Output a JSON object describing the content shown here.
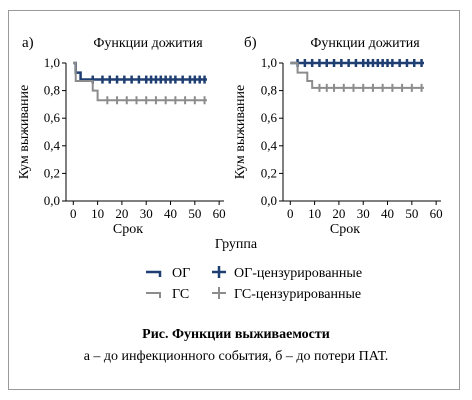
{
  "chart_data": [
    {
      "type": "line",
      "subtype": "kaplan-meier",
      "panel": "а)",
      "title": "Функции дожития",
      "xlabel": "Срок",
      "ylabel": "Кум выживание",
      "xlim": [
        -3,
        62
      ],
      "ylim": [
        0.0,
        1.0
      ],
      "x_ticks": [
        0,
        10,
        20,
        30,
        40,
        50,
        60
      ],
      "y_ticks": [
        0.0,
        0.2,
        0.4,
        0.6,
        0.8,
        1.0
      ],
      "y_tick_labels": [
        "0,0",
        "0,2",
        "0,4",
        "0,6",
        "0,8",
        "1,0"
      ],
      "series": [
        {
          "name": "ОГ",
          "color": "#1f3f73",
          "steps": [
            [
              0,
              1.0
            ],
            [
              1,
              0.93
            ],
            [
              3,
              0.88
            ],
            [
              55,
              0.88
            ]
          ],
          "censored_x": [
            8,
            12,
            15,
            18,
            21,
            24,
            27,
            30,
            32,
            34,
            36,
            38,
            40,
            42,
            45,
            48,
            50,
            52,
            54
          ],
          "censored_y": 0.88
        },
        {
          "name": "ГС",
          "color": "#8c8c8c",
          "steps": [
            [
              0,
              1.0
            ],
            [
              1,
              0.87
            ],
            [
              8,
              0.8
            ],
            [
              10,
              0.73
            ],
            [
              55,
              0.73
            ]
          ],
          "censored_x": [
            14,
            18,
            22,
            26,
            30,
            34,
            38,
            42,
            46,
            50,
            54
          ],
          "censored_y": 0.73
        }
      ]
    },
    {
      "type": "line",
      "subtype": "kaplan-meier",
      "panel": "б)",
      "title": "Функции дожития",
      "xlabel": "Срок",
      "ylabel": "Кум выживание",
      "xlim": [
        -3,
        62
      ],
      "ylim": [
        0.0,
        1.0
      ],
      "x_ticks": [
        0,
        10,
        20,
        30,
        40,
        50,
        60
      ],
      "y_ticks": [
        0.0,
        0.2,
        0.4,
        0.6,
        0.8,
        1.0
      ],
      "y_tick_labels": [
        "0,0",
        "0,2",
        "0,4",
        "0,6",
        "0,8",
        "1,0"
      ],
      "series": [
        {
          "name": "ОГ",
          "color": "#1f3f73",
          "steps": [
            [
              0,
              1.0
            ],
            [
              55,
              1.0
            ]
          ],
          "censored_x": [
            3,
            6,
            9,
            12,
            15,
            18,
            21,
            24,
            27,
            30,
            32,
            34,
            36,
            38,
            40,
            42,
            45,
            48,
            51,
            54
          ],
          "censored_y": 1.0
        },
        {
          "name": "ГС",
          "color": "#8c8c8c",
          "steps": [
            [
              0,
              1.0
            ],
            [
              3,
              0.93
            ],
            [
              7,
              0.87
            ],
            [
              9,
              0.82
            ],
            [
              55,
              0.82
            ]
          ],
          "censored_x": [
            12,
            15,
            18,
            22,
            26,
            30,
            34,
            38,
            42,
            46,
            50,
            54
          ],
          "censored_y": 0.82
        }
      ]
    }
  ],
  "legend": {
    "title": "Группа",
    "items": [
      {
        "label": "ОГ",
        "color": "#1f3f73",
        "kind": "line"
      },
      {
        "label": "ОГ-цензурированные",
        "color": "#1f3f73",
        "kind": "censor"
      },
      {
        "label": "ГС",
        "color": "#8c8c8c",
        "kind": "line"
      },
      {
        "label": "ГС-цензурированные",
        "color": "#8c8c8c",
        "kind": "censor"
      }
    ]
  },
  "caption": {
    "title": "Рис. Функции выживаемости",
    "line2": "а – до инфекционного события, б – до потери ПАТ."
  }
}
